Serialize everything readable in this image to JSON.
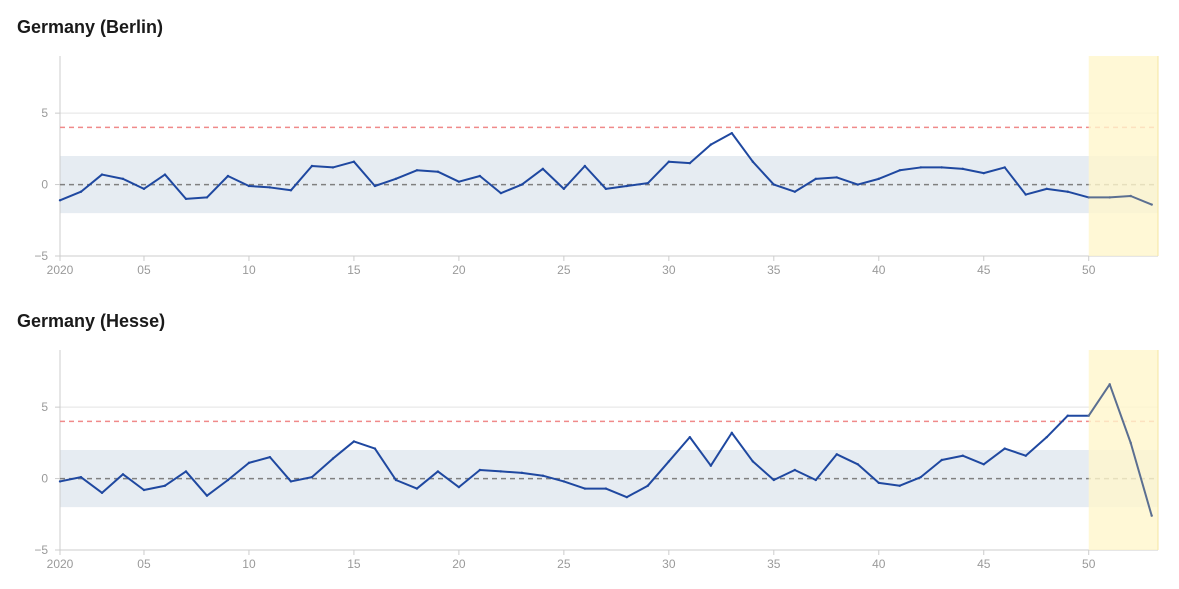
{
  "colors": {
    "line": "#1f48a0",
    "forecast_line": "#5b6f91",
    "normal_band": "#e6ecf2",
    "threshold": "#f08a8a",
    "baseline": "#808080",
    "highlight": "#fff6cc",
    "grid": "#e3e3e3",
    "axis": "#cccccc",
    "tick_text": "#9a9a9a"
  },
  "chart_data": [
    {
      "type": "line",
      "title": "Germany (Berlin)",
      "x_tick_labels": [
        "2020",
        "05",
        "10",
        "15",
        "20",
        "25",
        "30",
        "35",
        "40",
        "45",
        "50"
      ],
      "x_tick_values": [
        0,
        4,
        9,
        14,
        19,
        24,
        29,
        34,
        39,
        44,
        49
      ],
      "y_tick_values": [
        5,
        0,
        -5
      ],
      "y_tick_labels": [
        "5",
        "0",
        "−5"
      ],
      "xlim": [
        0,
        52.3
      ],
      "ylim": [
        -5,
        9
      ],
      "normal_band": [
        -2,
        2
      ],
      "threshold": 4,
      "baseline": 0,
      "highlight_range": [
        49,
        52.3
      ],
      "grid": "horizontal at y tick values",
      "x": [
        0,
        1,
        2,
        3,
        4,
        5,
        6,
        7,
        8,
        9,
        10,
        11,
        12,
        13,
        14,
        15,
        16,
        17,
        18,
        19,
        20,
        21,
        22,
        23,
        24,
        25,
        26,
        27,
        28,
        29,
        30,
        31,
        32,
        33,
        34,
        35,
        36,
        37,
        38,
        39,
        40,
        41,
        42,
        43,
        44,
        45,
        46,
        47,
        48,
        49,
        50,
        51,
        52
      ],
      "values": [
        -1.1,
        -0.5,
        0.7,
        0.4,
        -0.3,
        0.7,
        -1.0,
        -0.9,
        0.6,
        -0.1,
        -0.2,
        -0.4,
        1.3,
        1.2,
        1.6,
        -0.1,
        0.4,
        1.0,
        0.9,
        0.2,
        0.6,
        -0.6,
        0.0,
        1.1,
        -0.3,
        1.3,
        -0.3,
        -0.1,
        0.1,
        1.6,
        1.5,
        2.8,
        3.6,
        1.6,
        0.0,
        -0.5,
        0.4,
        0.5,
        0.0,
        0.4,
        1.0,
        1.2,
        1.2,
        1.1,
        0.8,
        1.2,
        -0.7,
        -0.3,
        -0.5,
        -0.9,
        -0.9,
        -0.8,
        -1.4
      ],
      "forecast_from_x": 49
    },
    {
      "type": "line",
      "title": "Germany (Hesse)",
      "x_tick_labels": [
        "2020",
        "05",
        "10",
        "15",
        "20",
        "25",
        "30",
        "35",
        "40",
        "45",
        "50"
      ],
      "x_tick_values": [
        0,
        4,
        9,
        14,
        19,
        24,
        29,
        34,
        39,
        44,
        49
      ],
      "y_tick_values": [
        5,
        0,
        -5
      ],
      "y_tick_labels": [
        "5",
        "0",
        "−5"
      ],
      "xlim": [
        0,
        52.3
      ],
      "ylim": [
        -5,
        9
      ],
      "normal_band": [
        -2,
        2
      ],
      "threshold": 4,
      "baseline": 0,
      "highlight_range": [
        49,
        52.3
      ],
      "grid": "horizontal at y tick values",
      "x": [
        0,
        1,
        2,
        3,
        4,
        5,
        6,
        7,
        8,
        9,
        10,
        11,
        12,
        13,
        14,
        15,
        16,
        17,
        18,
        19,
        20,
        21,
        22,
        23,
        24,
        25,
        26,
        27,
        28,
        29,
        30,
        31,
        32,
        33,
        34,
        35,
        36,
        37,
        38,
        39,
        40,
        41,
        42,
        43,
        44,
        45,
        46,
        47,
        48,
        49,
        50,
        51,
        52
      ],
      "values": [
        -0.2,
        0.1,
        -1.0,
        0.3,
        -0.8,
        -0.5,
        0.5,
        -1.2,
        -0.1,
        1.1,
        1.5,
        -0.2,
        0.1,
        1.4,
        2.6,
        2.1,
        -0.1,
        -0.7,
        0.5,
        -0.6,
        0.6,
        0.5,
        0.4,
        0.2,
        -0.2,
        -0.7,
        -0.7,
        -1.3,
        -0.5,
        1.2,
        2.9,
        0.9,
        3.2,
        1.2,
        -0.1,
        0.6,
        -0.1,
        1.7,
        1.0,
        -0.3,
        -0.5,
        0.1,
        1.3,
        1.6,
        1.0,
        2.1,
        1.6,
        2.9,
        4.4,
        4.4,
        6.6,
        2.5,
        -2.6
      ],
      "forecast_from_x": 49
    }
  ]
}
